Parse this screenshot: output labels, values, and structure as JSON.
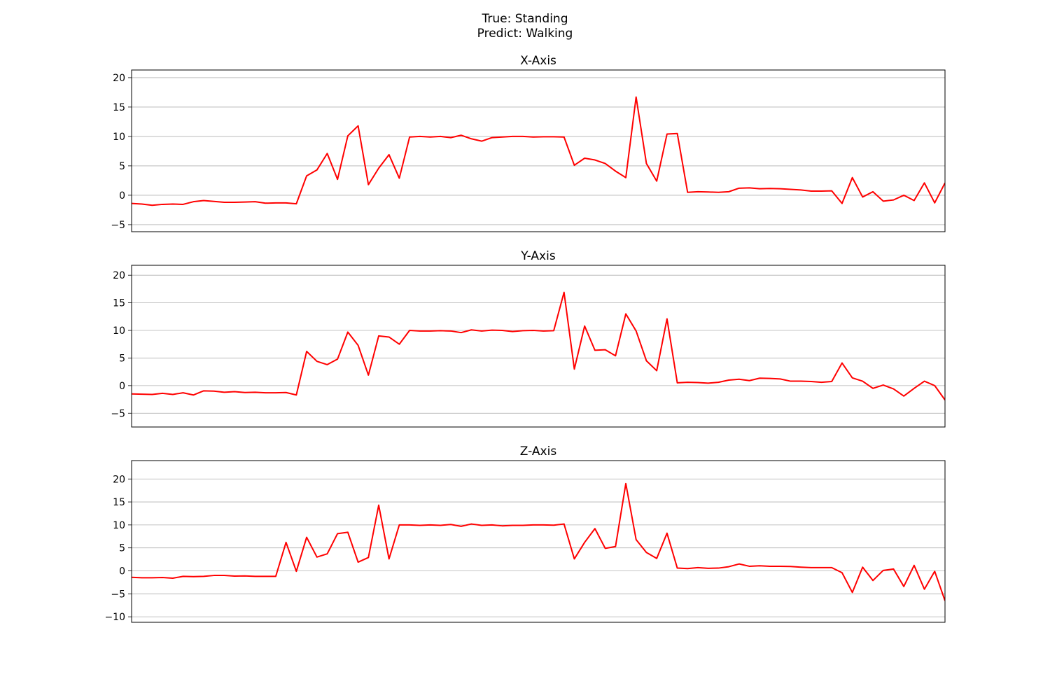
{
  "figure": {
    "title_line1": "True: Standing",
    "title_line2": "Predict: Walking"
  },
  "chart_data": [
    {
      "type": "line",
      "title": "X-Axis",
      "xlabel": "",
      "ylabel": "",
      "ylim": [
        -6.2,
        21.3
      ],
      "yticks": [
        -5,
        0,
        5,
        10,
        15,
        20
      ],
      "ytick_labels": [
        "−5",
        "0",
        "5",
        "10",
        "15",
        "20"
      ],
      "xticks": [],
      "grid": "y",
      "color": "#ff0000",
      "series": [
        {
          "values": [
            -1.4,
            -1.5,
            -1.7,
            -1.55,
            -1.5,
            -1.55,
            -1.1,
            -0.9,
            -1.05,
            -1.2,
            -1.2,
            -1.15,
            -1.1,
            -1.35,
            -1.3,
            -1.3,
            -1.45,
            3.3,
            4.3,
            7.1,
            2.7,
            10.1,
            11.8,
            1.8,
            4.6,
            6.9,
            2.9,
            9.9,
            10.0,
            9.9,
            10.0,
            9.8,
            10.2,
            9.6,
            9.2,
            9.8,
            9.9,
            10.0,
            10.0,
            9.9,
            9.95,
            9.95,
            9.9,
            5.1,
            6.3,
            6.0,
            5.4,
            4.1,
            3.0,
            16.7,
            5.4,
            2.4,
            10.4,
            10.5,
            0.5,
            0.6,
            0.55,
            0.5,
            0.6,
            1.2,
            1.25,
            1.1,
            1.15,
            1.1,
            1.0,
            0.9,
            0.7,
            0.7,
            0.75,
            -1.4,
            3.0,
            -0.3,
            0.6,
            -1.0,
            -0.8,
            0.0,
            -0.9,
            2.1,
            -1.3,
            2.1
          ]
        }
      ]
    },
    {
      "type": "line",
      "title": "Y-Axis",
      "xlabel": "",
      "ylabel": "",
      "ylim": [
        -7.5,
        21.8
      ],
      "yticks": [
        -5,
        0,
        5,
        10,
        15,
        20
      ],
      "ytick_labels": [
        "−5",
        "0",
        "5",
        "10",
        "15",
        "20"
      ],
      "xticks": [],
      "grid": "y",
      "color": "#ff0000",
      "series": [
        {
          "values": [
            -1.5,
            -1.55,
            -1.6,
            -1.4,
            -1.6,
            -1.3,
            -1.7,
            -0.95,
            -1.0,
            -1.2,
            -1.1,
            -1.25,
            -1.2,
            -1.3,
            -1.3,
            -1.25,
            -1.7,
            6.2,
            4.4,
            3.8,
            4.8,
            9.7,
            7.3,
            1.9,
            9.0,
            8.8,
            7.5,
            10.0,
            9.9,
            9.9,
            9.95,
            9.9,
            9.6,
            10.1,
            9.9,
            10.05,
            10.0,
            9.8,
            9.95,
            10.0,
            9.9,
            9.95,
            16.9,
            3.0,
            10.8,
            6.4,
            6.5,
            5.4,
            13.0,
            9.9,
            4.5,
            2.7,
            12.1,
            0.5,
            0.6,
            0.55,
            0.45,
            0.6,
            1.0,
            1.15,
            0.9,
            1.35,
            1.3,
            1.2,
            0.8,
            0.8,
            0.75,
            0.6,
            0.75,
            4.1,
            1.4,
            0.8,
            -0.5,
            0.1,
            -0.6,
            -1.9,
            -0.5,
            0.8,
            0.0,
            -2.6
          ]
        }
      ]
    },
    {
      "type": "line",
      "title": "Z-Axis",
      "xlabel": "",
      "ylabel": "",
      "ylim": [
        -11.2,
        24.0
      ],
      "yticks": [
        -10,
        -5,
        0,
        5,
        10,
        15,
        20
      ],
      "ytick_labels": [
        "−10",
        "−5",
        "0",
        "5",
        "10",
        "15",
        "20"
      ],
      "xticks": [],
      "grid": "y",
      "color": "#ff0000",
      "series": [
        {
          "values": [
            -1.4,
            -1.5,
            -1.5,
            -1.45,
            -1.6,
            -1.2,
            -1.25,
            -1.2,
            -1.0,
            -1.0,
            -1.15,
            -1.1,
            -1.2,
            -1.2,
            -1.2,
            6.2,
            -0.1,
            7.3,
            3.0,
            3.7,
            8.1,
            8.4,
            1.9,
            2.9,
            14.3,
            2.6,
            10.0,
            10.0,
            9.9,
            10.0,
            9.9,
            10.1,
            9.7,
            10.2,
            9.9,
            10.0,
            9.8,
            9.9,
            9.9,
            10.0,
            10.0,
            9.95,
            10.2,
            2.6,
            6.2,
            9.2,
            4.9,
            5.3,
            19.0,
            6.8,
            4.0,
            2.7,
            8.2,
            0.6,
            0.5,
            0.7,
            0.55,
            0.6,
            0.9,
            1.5,
            1.0,
            1.1,
            1.0,
            1.0,
            0.95,
            0.8,
            0.7,
            0.7,
            0.7,
            -0.4,
            -4.7,
            0.8,
            -2.1,
            0.1,
            0.4,
            -3.4,
            1.2,
            -4.0,
            -0.1,
            -6.5
          ]
        }
      ]
    }
  ]
}
